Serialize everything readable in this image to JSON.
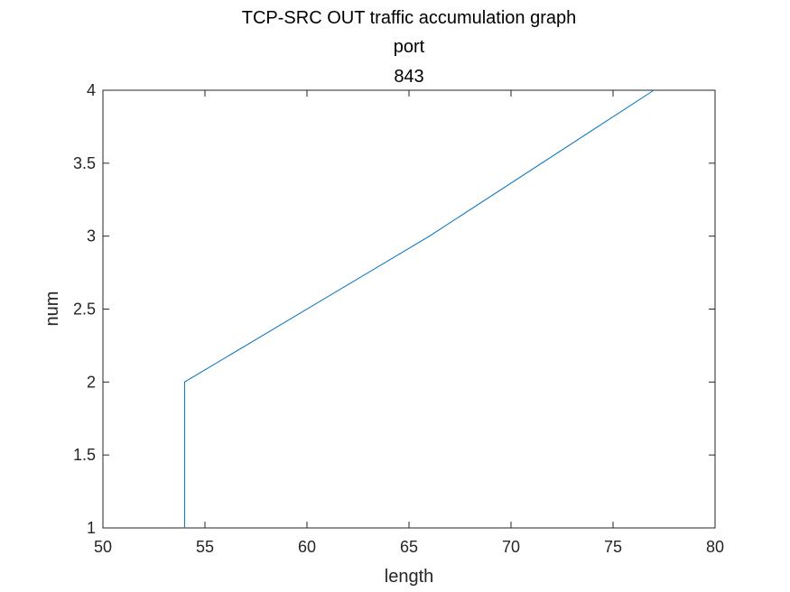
{
  "chart_data": {
    "type": "line",
    "title_lines": [
      "TCP-SRC OUT traffic accumulation graph",
      "port",
      "843"
    ],
    "xlabel": "length",
    "ylabel": "num",
    "xlim": [
      50,
      80
    ],
    "ylim": [
      1,
      4
    ],
    "xticks": [
      "50",
      "55",
      "60",
      "65",
      "70",
      "75",
      "80"
    ],
    "yticks": [
      "1",
      "1.5",
      "2",
      "2.5",
      "3",
      "3.5",
      "4"
    ],
    "grid": false,
    "series": [
      {
        "x": [
          54,
          54,
          66,
          77
        ],
        "y": [
          1,
          2,
          3,
          4
        ],
        "color": "#0072BD"
      }
    ]
  }
}
